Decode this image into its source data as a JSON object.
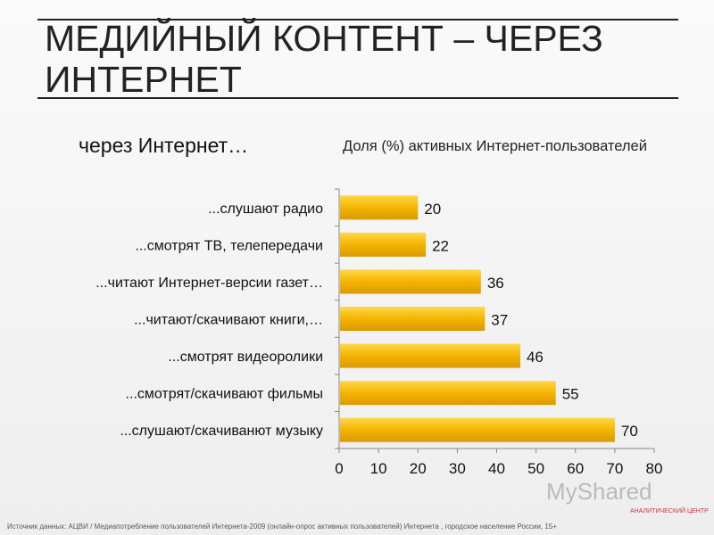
{
  "slide": {
    "title": "МЕДИЙНЫЙ КОНТЕНТ – ЧЕРЕЗ ИНТЕРНЕТ",
    "subtitle": "через Интернет…",
    "source": "Источник данных: АЦВИ / Медиапотребление пользователей Интернета-2009 (онлайн-опрос активных пользователей) Интернета , городское население России, 15+",
    "watermark": "MyShared",
    "logo_text": "АНАЛИТИЧЕСКИЙ ЦЕНТР"
  },
  "chart_data": {
    "type": "bar",
    "orientation": "horizontal",
    "title": "Доля (%) активных Интернет-пользователей",
    "categories": [
      "...слушают радио",
      "...смотрят ТВ, телепередачи",
      "...читают Интернет-версии газет…",
      "...читают/скачивают книги,…",
      "...смотрят видеоролики",
      "...смотрят/скачивают фильмы",
      "...слушают/скачиванют музыку"
    ],
    "values": [
      20,
      22,
      36,
      37,
      46,
      55,
      70
    ],
    "xlim": [
      0,
      80
    ],
    "xticks": [
      0,
      10,
      20,
      30,
      40,
      50,
      60,
      70,
      80
    ],
    "grid": false,
    "bar_color": "#f5b400",
    "data_labels": true
  }
}
